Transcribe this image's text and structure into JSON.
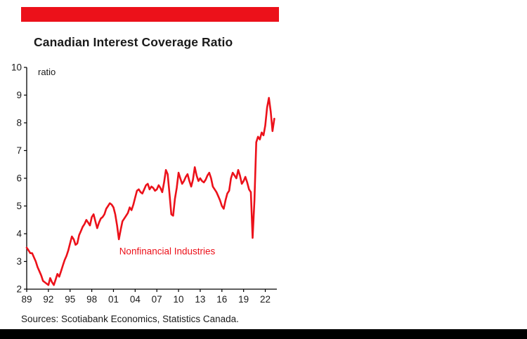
{
  "page": {
    "title": "Canadian Interest Coverage Ratio",
    "sources": "Sources: Scotiabank Economics, Statistics Canada."
  },
  "colors": {
    "accent_red": "#ec111a",
    "footer_black": "#000000",
    "text": "#1a1a1a",
    "axis": "#000000"
  },
  "chart_data": {
    "type": "line",
    "title": "Canadian Interest Coverage Ratio",
    "xlabel": "",
    "ylabel": "ratio",
    "ylim": [
      2,
      10
    ],
    "xlim": [
      1989,
      2023.6
    ],
    "y_ticks": [
      10,
      9,
      8,
      7,
      6,
      5,
      4,
      3,
      2
    ],
    "x_tick_years": [
      1989,
      1992,
      1995,
      1998,
      2001,
      2004,
      2007,
      2010,
      2013,
      2016,
      2019,
      2022
    ],
    "x_tick_labels": [
      "89",
      "92",
      "95",
      "98",
      "01",
      "04",
      "07",
      "10",
      "13",
      "16",
      "19",
      "22"
    ],
    "grid": false,
    "legend_position": "none",
    "annotation": {
      "text": "Nonfinancial Industries",
      "x": 2001.8,
      "y": 3.35,
      "color": "#ec111a"
    },
    "series": [
      {
        "name": "Nonfinancial Industries",
        "color": "#ec111a",
        "x_start": 1989.0,
        "x_step": 0.25,
        "values": [
          3.5,
          3.4,
          3.3,
          3.3,
          3.15,
          3.0,
          2.8,
          2.65,
          2.5,
          2.3,
          2.25,
          2.2,
          2.15,
          2.4,
          2.25,
          2.15,
          2.35,
          2.55,
          2.45,
          2.65,
          2.85,
          3.05,
          3.2,
          3.4,
          3.65,
          3.9,
          3.8,
          3.6,
          3.65,
          3.95,
          4.1,
          4.25,
          4.35,
          4.5,
          4.4,
          4.3,
          4.6,
          4.7,
          4.45,
          4.2,
          4.4,
          4.55,
          4.6,
          4.7,
          4.9,
          5.0,
          5.1,
          5.05,
          4.95,
          4.7,
          4.3,
          3.8,
          4.15,
          4.45,
          4.55,
          4.65,
          4.75,
          4.95,
          4.85,
          5.05,
          5.3,
          5.55,
          5.6,
          5.5,
          5.45,
          5.6,
          5.75,
          5.8,
          5.6,
          5.7,
          5.65,
          5.55,
          5.6,
          5.75,
          5.65,
          5.5,
          5.85,
          6.3,
          6.15,
          5.45,
          4.7,
          4.65,
          5.25,
          5.65,
          6.2,
          6.0,
          5.8,
          5.9,
          6.05,
          6.15,
          5.9,
          5.7,
          5.95,
          6.4,
          6.1,
          5.9,
          6.0,
          5.9,
          5.85,
          5.95,
          6.1,
          6.2,
          6.0,
          5.7,
          5.6,
          5.5,
          5.35,
          5.2,
          5.0,
          4.9,
          5.2,
          5.45,
          5.55,
          6.0,
          6.2,
          6.1,
          6.0,
          6.3,
          6.1,
          5.8,
          5.9,
          6.05,
          5.85,
          5.6,
          5.5,
          3.85,
          5.2,
          7.3,
          7.5,
          7.4,
          7.65,
          7.55,
          7.9,
          8.55,
          8.9,
          8.4,
          7.7,
          8.15
        ]
      }
    ]
  }
}
